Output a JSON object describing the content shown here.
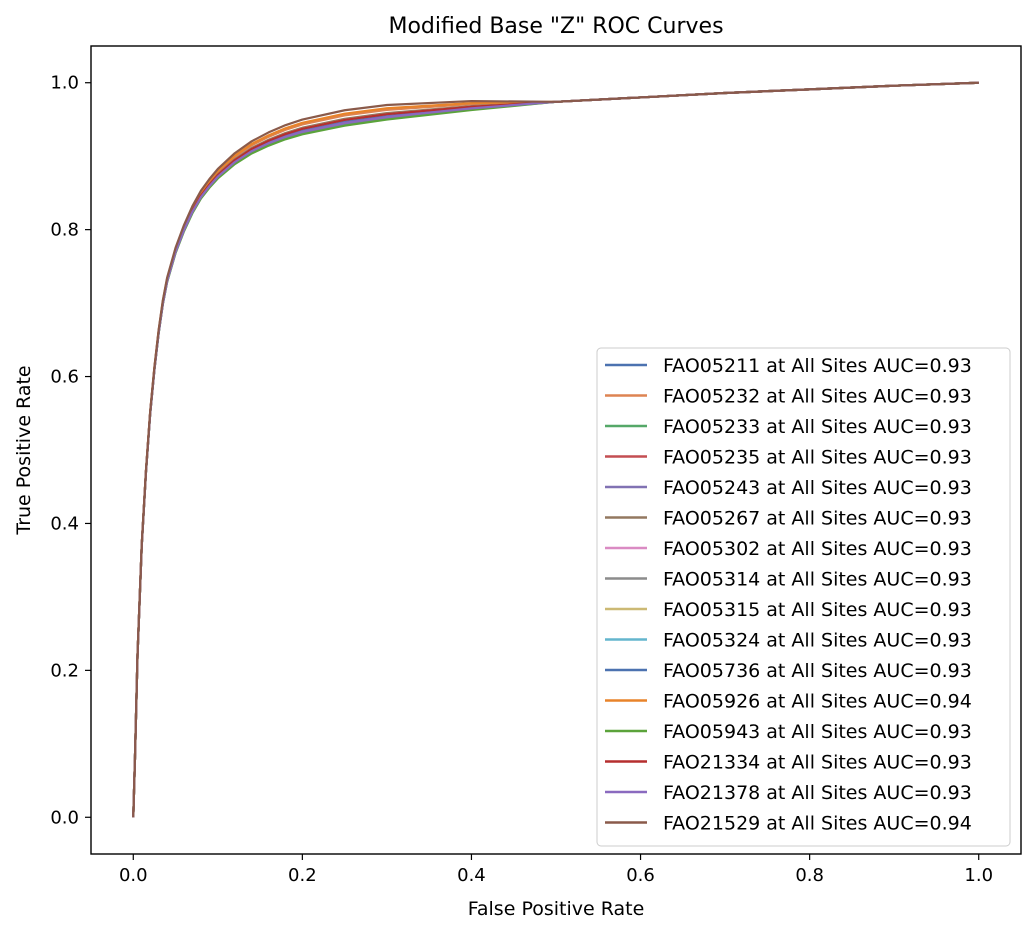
{
  "chart_data": {
    "type": "line",
    "title": "Modified Base \"Z\" ROC Curves",
    "xlabel": "False Positive Rate",
    "ylabel": "True Positive Rate",
    "xlim": [
      -0.05,
      1.05
    ],
    "ylim": [
      -0.05,
      1.05
    ],
    "grid": false,
    "legend_position": "lower-right",
    "xticks": [
      "0.0",
      "0.2",
      "0.4",
      "0.6",
      "0.8",
      "1.0"
    ],
    "yticks": [
      "0.0",
      "0.2",
      "0.4",
      "0.6",
      "0.8",
      "1.0"
    ],
    "base_curve": {
      "x": [
        0,
        0.002,
        0.005,
        0.01,
        0.015,
        0.02,
        0.025,
        0.03,
        0.035,
        0.04,
        0.05,
        0.06,
        0.07,
        0.08,
        0.09,
        0.1,
        0.12,
        0.14,
        0.16,
        0.18,
        0.2,
        0.25,
        0.3,
        0.4,
        0.5,
        0.6,
        0.7,
        0.8,
        0.9,
        1.0
      ],
      "y": [
        0,
        0.08,
        0.22,
        0.37,
        0.47,
        0.55,
        0.61,
        0.66,
        0.7,
        0.73,
        0.77,
        0.8,
        0.825,
        0.845,
        0.86,
        0.873,
        0.893,
        0.908,
        0.919,
        0.928,
        0.935,
        0.947,
        0.955,
        0.966,
        0.974,
        0.98,
        0.986,
        0.991,
        0.996,
        1.0
      ]
    },
    "series": [
      {
        "label": "FAO05211 at All Sites AUC=0.93",
        "color": "#4c72b0",
        "shift": 0.0
      },
      {
        "label": "FAO05232 at All Sites AUC=0.93",
        "color": "#dd8452",
        "shift": 0.55
      },
      {
        "label": "FAO05233 at All Sites AUC=0.93",
        "color": "#55a868",
        "shift": -0.25
      },
      {
        "label": "FAO05235 at All Sites AUC=0.93",
        "color": "#c44e52",
        "shift": 0.1
      },
      {
        "label": "FAO05243 at All Sites AUC=0.93",
        "color": "#8172b3",
        "shift": -0.2
      },
      {
        "label": "FAO05267 at All Sites AUC=0.93",
        "color": "#937860",
        "shift": 0.25
      },
      {
        "label": "FAO05302 at All Sites AUC=0.93",
        "color": "#da8bc3",
        "shift": 0.05
      },
      {
        "label": "FAO05314 at All Sites AUC=0.93",
        "color": "#8c8c8c",
        "shift": 0.0
      },
      {
        "label": "FAO05315 at All Sites AUC=0.93",
        "color": "#ccb974",
        "shift": 0.15
      },
      {
        "label": "FAO05324 at All Sites AUC=0.93",
        "color": "#64b5cd",
        "shift": 0.1
      },
      {
        "label": "FAO05736 at All Sites AUC=0.93",
        "color": "#4c72b0",
        "shift": -0.05
      },
      {
        "label": "FAO05926 at All Sites AUC=0.94",
        "color": "#e8832a",
        "shift": 0.7
      },
      {
        "label": "FAO05943 at All Sites AUC=0.93",
        "color": "#5ba33b",
        "shift": -0.35
      },
      {
        "label": "FAO21334 at All Sites AUC=0.93",
        "color": "#b52f2f",
        "shift": 0.15
      },
      {
        "label": "FAO21378 at All Sites AUC=0.93",
        "color": "#8a6abf",
        "shift": -0.1
      },
      {
        "label": "FAO21529 at All Sites AUC=0.94",
        "color": "#8a5a4a",
        "shift": 1.0
      }
    ]
  }
}
